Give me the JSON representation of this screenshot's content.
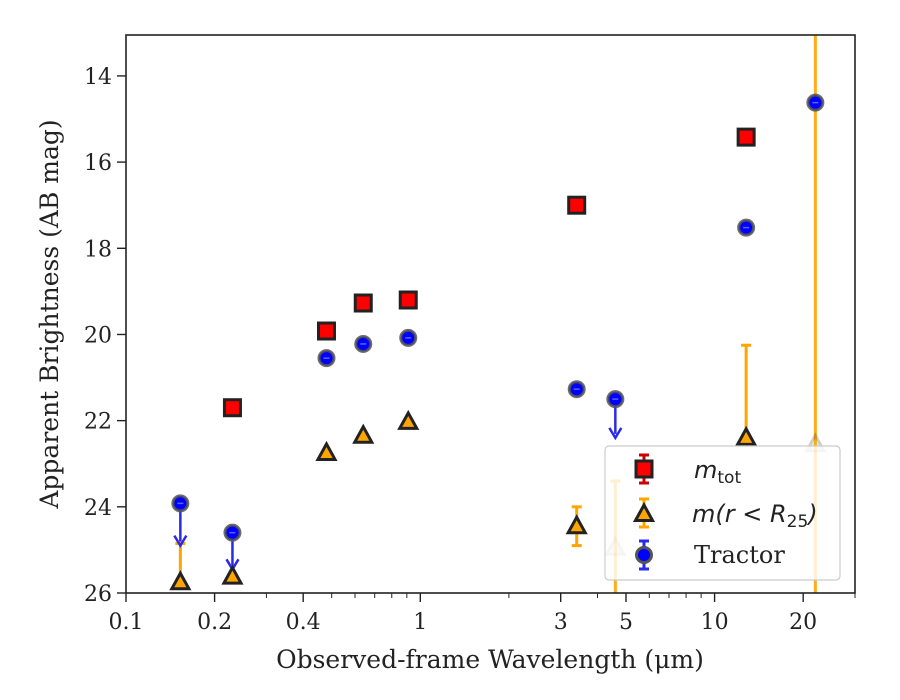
{
  "chart_data": {
    "type": "scatter",
    "xlabel": "Observed-frame Wavelength (μm)",
    "ylabel": "Apparent Brightness (AB mag)",
    "x_scale": "log",
    "xlim": [
      0.1,
      30
    ],
    "ylim": [
      26,
      13.05
    ],
    "y_inverted": true,
    "x_ticks": [
      {
        "value": 0.1,
        "label": "0.1"
      },
      {
        "value": 0.2,
        "label": "0.2"
      },
      {
        "value": 0.4,
        "label": "0.4"
      },
      {
        "value": 1,
        "label": "1"
      },
      {
        "value": 3,
        "label": "3"
      },
      {
        "value": 5,
        "label": "5"
      },
      {
        "value": 10,
        "label": "10"
      },
      {
        "value": 20,
        "label": "20"
      }
    ],
    "y_ticks": [
      {
        "value": 14,
        "label": "14"
      },
      {
        "value": 16,
        "label": "16"
      },
      {
        "value": 18,
        "label": "18"
      },
      {
        "value": 20,
        "label": "20"
      },
      {
        "value": 22,
        "label": "22"
      },
      {
        "value": 24,
        "label": "24"
      },
      {
        "value": 26,
        "label": "26"
      }
    ],
    "legend_position": "lower-right",
    "series": [
      {
        "name_main": "m",
        "name_sub": "tot",
        "marker": "square",
        "color": "#ff0000",
        "edge_color": "#222222",
        "points": [
          {
            "x": 0.23,
            "y": 21.7
          },
          {
            "x": 0.48,
            "y": 19.92
          },
          {
            "x": 0.64,
            "y": 19.27
          },
          {
            "x": 0.91,
            "y": 19.2
          },
          {
            "x": 3.4,
            "y": 17.0
          },
          {
            "x": 12.8,
            "y": 15.42
          }
        ]
      },
      {
        "name_main": "m(r < R",
        "name_sub": "25",
        "name_tail": ")",
        "marker": "triangle",
        "color": "#ffa500",
        "edge_color": "#222222",
        "points": [
          {
            "x": 0.153,
            "y": 25.75,
            "yerr_low": 25.75,
            "yerr_high": 24.85
          },
          {
            "x": 0.23,
            "y": 25.62
          },
          {
            "x": 0.48,
            "y": 22.75
          },
          {
            "x": 0.64,
            "y": 22.35
          },
          {
            "x": 0.91,
            "y": 22.03
          },
          {
            "x": 3.4,
            "y": 24.45,
            "yerr_low": 24.9,
            "yerr_high": 24.0
          },
          {
            "x": 4.6,
            "y": 24.95,
            "yerr_low": 26.0,
            "yerr_high": 23.4,
            "faded": true
          },
          {
            "x": 12.8,
            "y": 22.4,
            "yerr_low": 22.4,
            "yerr_high": 20.25
          },
          {
            "x": 22.0,
            "y": 22.55,
            "yerr_low": 26.0,
            "yerr_high": 13.05,
            "faded": true
          }
        ]
      },
      {
        "name_main": "Tractor",
        "marker": "circle",
        "color": "#0000ff",
        "edge_color": "#555555",
        "points": [
          {
            "x": 0.153,
            "y": 23.92,
            "upper_limit": true,
            "arrow_to": 24.9
          },
          {
            "x": 0.23,
            "y": 24.6,
            "upper_limit": true,
            "arrow_to": 25.45
          },
          {
            "x": 0.48,
            "y": 20.55
          },
          {
            "x": 0.64,
            "y": 20.22
          },
          {
            "x": 0.91,
            "y": 20.08
          },
          {
            "x": 3.4,
            "y": 21.27
          },
          {
            "x": 4.6,
            "y": 21.5,
            "upper_limit": true,
            "arrow_to": 22.4
          },
          {
            "x": 12.8,
            "y": 17.52
          },
          {
            "x": 22.0,
            "y": 14.62
          }
        ]
      }
    ]
  }
}
